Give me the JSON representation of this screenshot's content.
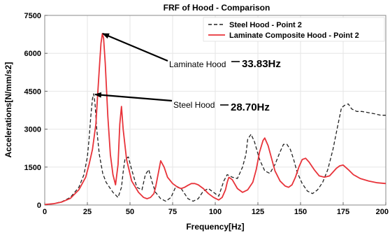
{
  "chart_data": {
    "type": "line",
    "title": "FRF of Hood - Comparison",
    "xlabel": "Frequency[Hz]",
    "ylabel": "Accelerations[N/mm/s2]",
    "xlim": [
      0,
      200
    ],
    "ylim": [
      0,
      7500
    ],
    "x_ticks": [
      0,
      25,
      50,
      75,
      100,
      125,
      150,
      175,
      200
    ],
    "y_ticks": [
      0,
      1500,
      3000,
      4500,
      6000,
      7500
    ],
    "grid": true,
    "legend_position": "top-right",
    "series": [
      {
        "name": "Steel Hood - Point 2",
        "color": "#222222",
        "style": "dashed",
        "x": [
          0,
          5,
          10,
          15,
          20,
          23,
          25,
          26,
          27,
          28,
          28.7,
          29.5,
          30.5,
          32,
          34,
          36,
          38,
          40,
          43,
          45,
          46,
          47,
          49,
          51,
          54,
          57,
          59,
          61,
          63,
          65,
          68,
          71,
          74,
          77,
          80,
          84,
          87,
          90,
          93,
          96,
          99,
          102,
          105,
          107,
          110,
          113,
          116,
          118,
          119,
          121,
          123,
          126,
          129,
          132,
          135,
          138,
          140,
          142,
          144,
          146,
          148,
          151,
          154,
          157,
          160,
          163,
          166,
          169,
          172,
          174,
          176,
          178,
          180,
          183,
          186,
          190,
          194,
          197,
          200
        ],
        "y": [
          20,
          50,
          130,
          300,
          700,
          1200,
          1900,
          2600,
          3500,
          4200,
          4400,
          4000,
          3000,
          2000,
          1250,
          900,
          700,
          500,
          300,
          700,
          1300,
          1800,
          1900,
          1400,
          700,
          600,
          1200,
          1400,
          900,
          500,
          250,
          150,
          300,
          750,
          650,
          250,
          150,
          250,
          550,
          650,
          500,
          350,
          950,
          1200,
          1100,
          1050,
          1500,
          2000,
          2600,
          2800,
          2500,
          1800,
          1350,
          1250,
          1600,
          2100,
          2400,
          2400,
          2200,
          1800,
          1300,
          850,
          550,
          450,
          600,
          900,
          1400,
          2200,
          3200,
          3850,
          3950,
          4000,
          3800,
          3700,
          3700,
          3650,
          3600,
          3550,
          3550
        ]
      },
      {
        "name": "Laminate Composite Hood - Point 2",
        "color": "#e8333a",
        "style": "solid",
        "x": [
          0,
          5,
          10,
          15,
          20,
          24,
          26,
          28,
          30,
          31,
          32,
          33,
          33.83,
          34.5,
          35.5,
          37,
          38.5,
          40,
          41.5,
          43,
          44,
          45,
          46,
          48,
          51,
          55,
          58,
          60,
          62,
          64,
          65,
          67,
          68,
          70,
          72,
          75,
          78,
          80,
          82,
          84,
          86,
          88,
          90,
          93,
          96,
          99,
          102,
          104,
          106,
          107,
          108,
          110,
          113,
          116,
          119,
          122,
          124,
          126,
          128,
          129,
          131,
          133,
          135,
          138,
          141,
          143,
          145,
          147,
          149,
          151,
          153,
          155,
          158,
          161,
          164,
          167,
          169,
          171,
          173,
          175,
          178,
          181,
          185,
          190,
          195,
          200
        ],
        "y": [
          20,
          50,
          120,
          260,
          600,
          1100,
          1600,
          2200,
          3200,
          4300,
          5400,
          6400,
          6780,
          6600,
          5600,
          3500,
          2000,
          1200,
          800,
          1600,
          3200,
          3900,
          3000,
          1800,
          950,
          500,
          300,
          250,
          300,
          450,
          700,
          1400,
          1750,
          1500,
          1100,
          850,
          700,
          650,
          700,
          780,
          850,
          850,
          800,
          650,
          450,
          300,
          200,
          300,
          600,
          900,
          1100,
          1000,
          650,
          500,
          600,
          900,
          1400,
          2100,
          2550,
          2650,
          2350,
          1850,
          1350,
          950,
          750,
          700,
          800,
          1100,
          1500,
          1800,
          1850,
          1700,
          1400,
          1150,
          1100,
          1150,
          1300,
          1450,
          1550,
          1580,
          1400,
          1200,
          1050,
          950,
          880,
          850
        ]
      }
    ],
    "annotations": [
      {
        "label": "Laminate Hood",
        "value_text": "33.83Hz",
        "x": 33.83,
        "y": 6780
      },
      {
        "label": "Steel Hood",
        "value_text": "28.70Hz",
        "x": 28.7,
        "y": 4400
      }
    ]
  }
}
